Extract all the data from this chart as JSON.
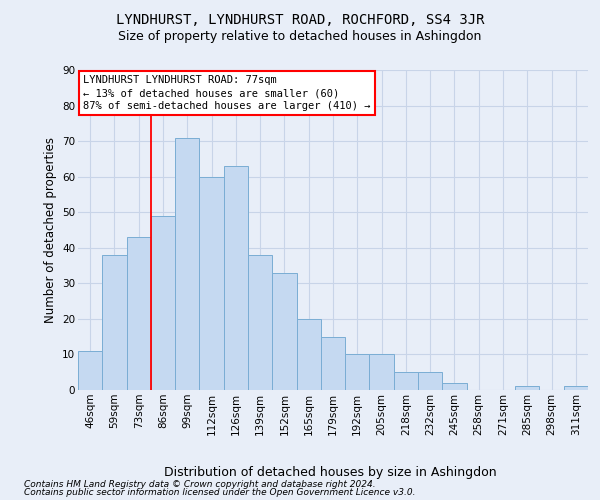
{
  "title": "LYNDHURST, LYNDHURST ROAD, ROCHFORD, SS4 3JR",
  "subtitle": "Size of property relative to detached houses in Ashingdon",
  "xlabel": "Distribution of detached houses by size in Ashingdon",
  "ylabel": "Number of detached properties",
  "categories": [
    "46sqm",
    "59sqm",
    "73sqm",
    "86sqm",
    "99sqm",
    "112sqm",
    "126sqm",
    "139sqm",
    "152sqm",
    "165sqm",
    "179sqm",
    "192sqm",
    "205sqm",
    "218sqm",
    "232sqm",
    "245sqm",
    "258sqm",
    "271sqm",
    "285sqm",
    "298sqm",
    "311sqm"
  ],
  "values": [
    11,
    38,
    43,
    49,
    71,
    60,
    63,
    38,
    33,
    20,
    15,
    10,
    10,
    5,
    5,
    2,
    0,
    0,
    1,
    0,
    1
  ],
  "bar_color": "#c5d9f1",
  "bar_edge_color": "#7AADD4",
  "bar_width": 1.0,
  "ylim": [
    0,
    90
  ],
  "yticks": [
    0,
    10,
    20,
    30,
    40,
    50,
    60,
    70,
    80,
    90
  ],
  "annotation_text": "LYNDHURST LYNDHURST ROAD: 77sqm\n← 13% of detached houses are smaller (60)\n87% of semi-detached houses are larger (410) →",
  "annotation_box_color": "white",
  "annotation_box_edge_color": "red",
  "vline_x_index": 2.5,
  "vline_color": "red",
  "footer_line1": "Contains HM Land Registry data © Crown copyright and database right 2024.",
  "footer_line2": "Contains public sector information licensed under the Open Government Licence v3.0.",
  "background_color": "#e8eef8",
  "grid_color": "#c8d4e8",
  "title_fontsize": 10,
  "subtitle_fontsize": 9,
  "axis_label_fontsize": 8.5,
  "tick_fontsize": 7.5,
  "annotation_fontsize": 7.5,
  "footer_fontsize": 6.5
}
